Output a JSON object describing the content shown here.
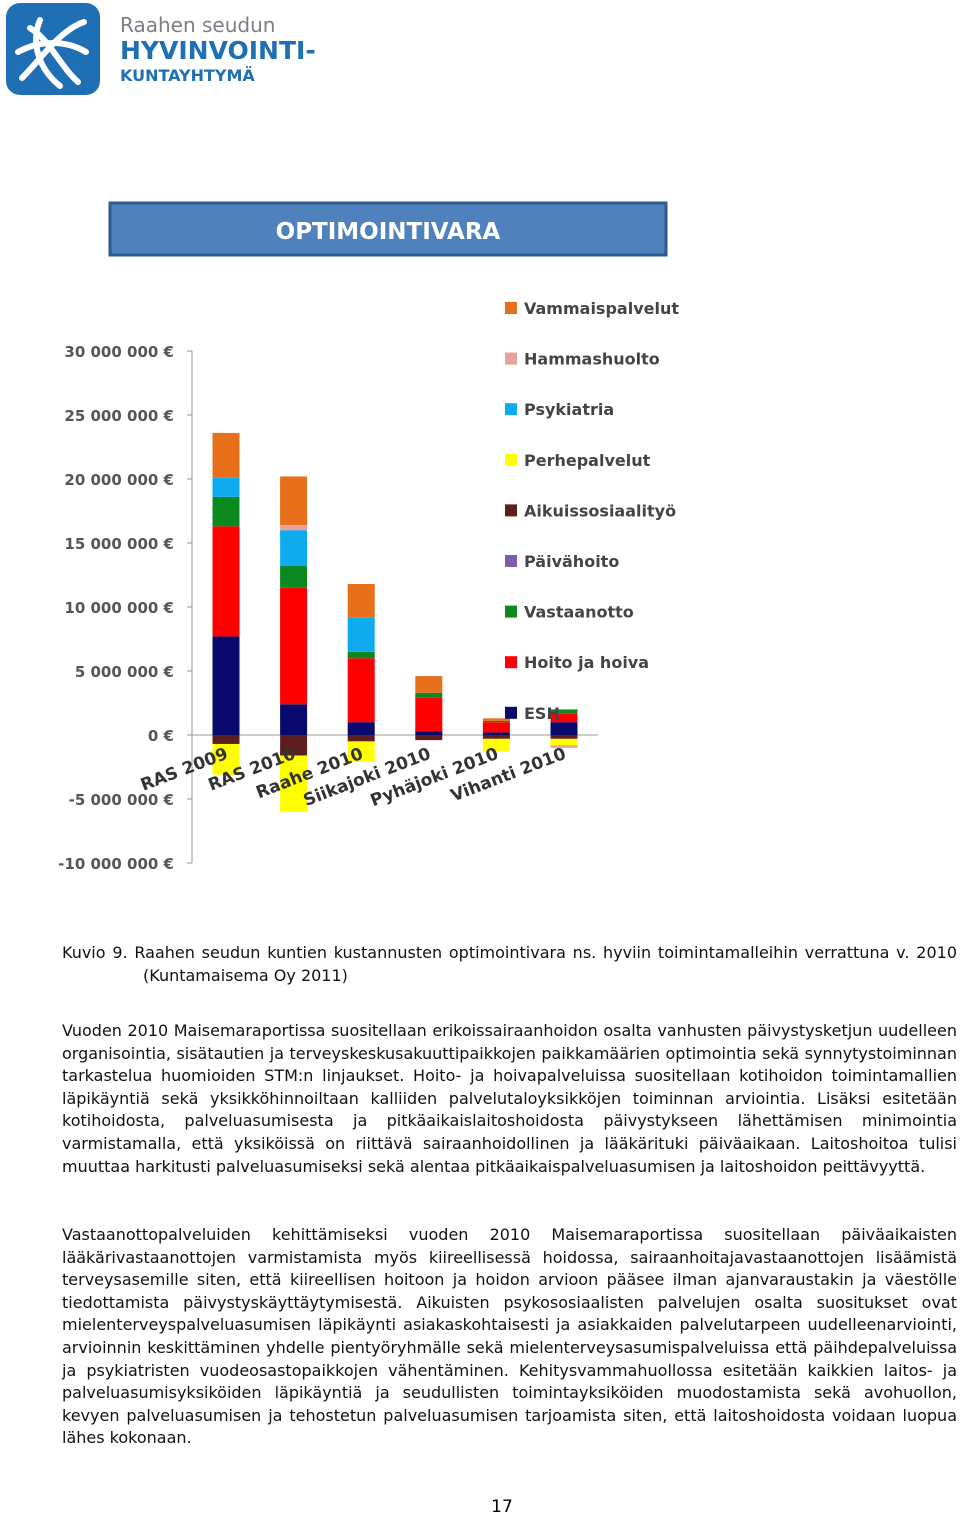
{
  "header": {
    "org_line1": "Raahen seudun",
    "org_line2": "HYVINVOINTI-",
    "org_line3": "KUNTAYHTYMÄ"
  },
  "chart_data": {
    "type": "stacked-bar",
    "title": "OPTIMOINTIVARA",
    "categories": [
      "RAS 2009",
      "RAS 2010",
      "Raahe 2010",
      "Siikajoki 2010",
      "Pyhäjoki 2010",
      "Vihanti 2010"
    ],
    "series": [
      {
        "name": "ESH",
        "color": "#0a0a6e",
        "values": [
          7700000,
          2400000,
          1000000,
          300000,
          200000,
          1000000
        ]
      },
      {
        "name": "Hoito ja hoiva",
        "color": "#ff0000",
        "values": [
          8600000,
          9100000,
          5000000,
          2600000,
          800000,
          700000
        ]
      },
      {
        "name": "Vastaanotto",
        "color": "#0a8a1e",
        "values": [
          2300000,
          1700000,
          500000,
          400000,
          100000,
          300000
        ]
      },
      {
        "name": "Päivähoito",
        "color": "#7b5ea7",
        "values": [
          0,
          0,
          0,
          0,
          0,
          0
        ]
      },
      {
        "name": "Aikuissosiaalityö",
        "color": "#5c1e1e",
        "values": [
          -700000,
          -1600000,
          -500000,
          -400000,
          -300000,
          -300000
        ]
      },
      {
        "name": "Perhepalvelut",
        "color": "#ffff00",
        "values": [
          -2400000,
          -4400000,
          -1600000,
          0,
          -1000000,
          -500000
        ]
      },
      {
        "name": "Psykiatria",
        "color": "#10aaee",
        "values": [
          1500000,
          2800000,
          2700000,
          0,
          0,
          0
        ]
      },
      {
        "name": "Hammashuolto",
        "color": "#e8a0a0",
        "values": [
          0,
          400000,
          0,
          0,
          0,
          -200000
        ]
      },
      {
        "name": "Vammaispalvelut",
        "color": "#e8701a",
        "values": [
          3500000,
          3800000,
          2600000,
          1300000,
          200000,
          0
        ]
      }
    ],
    "ylim": [
      -10000000,
      30000000
    ],
    "yticks": [
      {
        "value": -10000000,
        "label": "-10 000 000 €"
      },
      {
        "value": -5000000,
        "label": "-5 000 000 €"
      },
      {
        "value": 0,
        "label": "0 €"
      },
      {
        "value": 5000000,
        "label": "5 000 000 €"
      },
      {
        "value": 10000000,
        "label": "10 000 000 €"
      },
      {
        "value": 15000000,
        "label": "15 000 000 €"
      },
      {
        "value": 20000000,
        "label": "20 000 000 €"
      },
      {
        "value": 25000000,
        "label": "25 000 000 €"
      },
      {
        "value": 30000000,
        "label": "30 000 000 €"
      }
    ],
    "legend": "right"
  },
  "caption": "Kuvio 9. Raahen seudun kuntien kustannusten optimointivara ns. hyviin toimintamalleihin verrattuna v. 2010 (Kuntamaisema Oy 2011)",
  "paragraphs": [
    "Vuoden 2010 Maisemaraportissa suositellaan erikoissairaanhoidon osalta vanhusten päivystysketjun uudelleen organisointia, sisätautien ja terveyskeskusakuuttipaikkojen paikkamäärien optimointia sekä synnytystoiminnan tarkastelua huomioiden STM:n linjaukset. Hoito- ja hoivapalveluissa suositellaan kotihoidon toimintamallien läpikäyntiä sekä yksikköhinnoiltaan kalliiden palvelutaloyksikköjen toiminnan arviointia. Lisäksi esitetään kotihoidosta, palveluasumisesta ja pitkäaikaislaitoshoidosta päivystykseen lähettämisen minimointia varmistamalla, että yksiköissä on riittävä sairaanhoidollinen ja lääkärituki päiväaikaan. Laitoshoitoa tulisi muuttaa harkitusti palveluasumiseksi sekä alentaa pitkäaikaispalveluasumisen ja laitoshoidon peittävyyttä.",
    "Vastaanottopalveluiden kehittämiseksi vuoden 2010 Maisemaraportissa suositellaan päiväaikaisten lääkärivastaanottojen varmistamista myös kiireellisessä hoidossa, sairaanhoitajavastaanottojen lisäämistä terveysasemille siten, että kiireellisen hoitoon ja hoidon arvioon pääsee ilman ajanvaraustakin ja väestölle tiedottamista päivystyskäyttäytymisestä. Aikuisten psykososiaalisten palvelujen osalta suositukset ovat mielenterveyspalveluasumisen läpikäynti asiakaskohtaisesti ja asiakkaiden palvelutarpeen uudelleenarviointi, arvioinnin keskittäminen yhdelle pientyöryhmälle sekä mielenterveysasumispalveluissa että päihdepalveluissa ja psykiatristen vuodeosastopaikkojen vähentäminen. Kehitysvammahuollossa esitetään kaikkien laitos- ja palveluasumisyksiköiden läpikäyntiä ja seudullisten toimintayksiköiden muodostamista sekä avohuollon, kevyen palveluasumisen ja tehostetun palveluasumisen tarjoamista siten, että laitoshoidosta voidaan luopua lähes kokonaan."
  ],
  "page_number": "17"
}
